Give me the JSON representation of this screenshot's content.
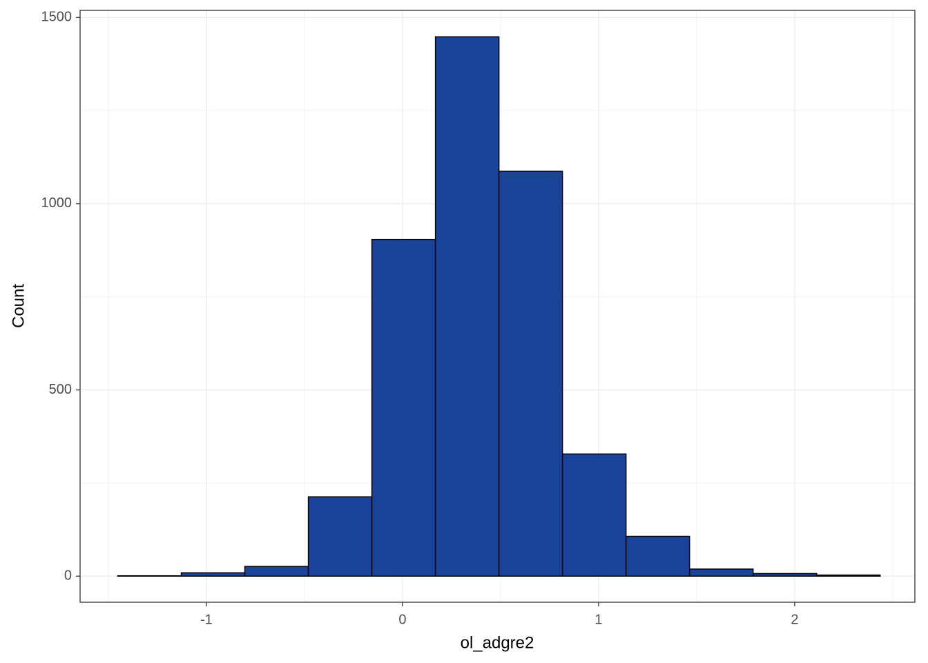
{
  "chart_data": {
    "type": "histogram",
    "x_label": "ol_adgre2",
    "y_label": "Count",
    "bins": [
      -1.452,
      -1.128,
      -0.804,
      -0.48,
      -0.156,
      0.168,
      0.492,
      0.816,
      1.14,
      1.464,
      1.788,
      2.112,
      2.436
    ],
    "counts": [
      1,
      9,
      26,
      213,
      904,
      1448,
      1087,
      328,
      107,
      19,
      7,
      3
    ],
    "color": "#1a4499",
    "edge_color": "#000000",
    "xlim": [
      -1.644,
      2.613
    ],
    "ylim": [
      -70,
      1519
    ],
    "xticks": [
      -1,
      0,
      1,
      2
    ],
    "yticks": [
      0,
      500,
      1000,
      1500
    ],
    "grid": true
  }
}
